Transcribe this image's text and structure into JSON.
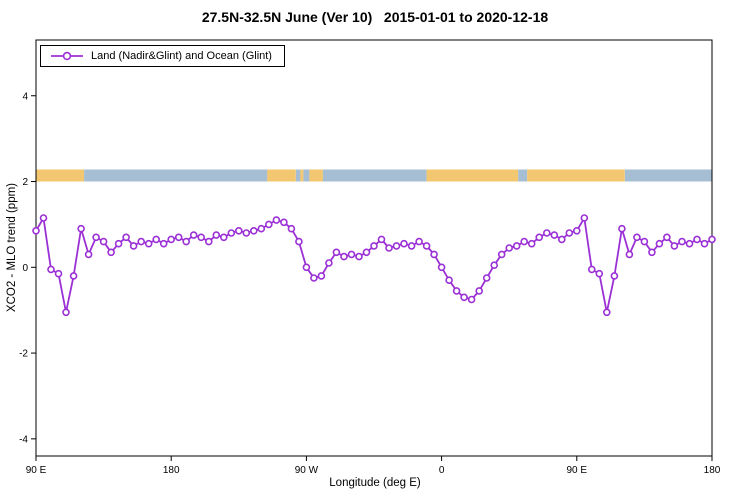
{
  "chart_data": {
    "type": "line",
    "title": "27.5N-32.5N June (Ver 10)   2015-01-01 to 2020-12-18",
    "xlabel": "Longitude (deg E)",
    "ylabel": "XCO2 - MLO trend (ppm)",
    "xlim": [
      90,
      540
    ],
    "ylim": [
      -4.4,
      5.3
    ],
    "grid": false,
    "legend_position": "top-left",
    "x_ticks": [
      {
        "value": 90,
        "label": "90 E"
      },
      {
        "value": 180,
        "label": "180"
      },
      {
        "value": 270,
        "label": "90 W"
      },
      {
        "value": 360,
        "label": "0"
      },
      {
        "value": 450,
        "label": "90 E"
      },
      {
        "value": 540,
        "label": "180"
      }
    ],
    "y_ticks": [
      {
        "value": -4,
        "label": "-4"
      },
      {
        "value": -2,
        "label": "-2"
      },
      {
        "value": 0,
        "label": "0"
      },
      {
        "value": 2,
        "label": "2"
      },
      {
        "value": 4,
        "label": "4"
      }
    ],
    "series": [
      {
        "name": "Land (Nadir&Glint) and Ocean (Glint)",
        "color": "#9b30d5",
        "marker": "open-circle",
        "x": [
          90,
          95,
          100,
          105,
          110,
          115,
          120,
          125,
          130,
          135,
          140,
          145,
          150,
          155,
          160,
          165,
          170,
          175,
          180,
          185,
          190,
          195,
          200,
          205,
          210,
          215,
          220,
          225,
          230,
          235,
          240,
          245,
          250,
          255,
          260,
          265,
          270,
          275,
          280,
          285,
          290,
          295,
          300,
          305,
          310,
          315,
          320,
          325,
          330,
          335,
          340,
          345,
          350,
          355,
          360,
          365,
          370,
          375,
          380,
          385,
          390,
          395,
          400,
          405,
          410,
          415,
          420,
          425,
          430,
          435,
          440,
          445,
          450,
          455,
          460,
          465,
          470,
          475,
          480,
          485,
          490,
          495,
          500,
          505,
          510,
          515,
          520,
          525,
          530,
          535,
          540
        ],
        "y": [
          0.85,
          1.15,
          -0.05,
          -0.15,
          -1.05,
          -0.2,
          0.9,
          0.3,
          0.7,
          0.6,
          0.35,
          0.55,
          0.7,
          0.5,
          0.6,
          0.55,
          0.65,
          0.55,
          0.65,
          0.7,
          0.6,
          0.75,
          0.7,
          0.6,
          0.75,
          0.7,
          0.8,
          0.85,
          0.8,
          0.85,
          0.9,
          1.0,
          1.1,
          1.05,
          0.9,
          0.6,
          0.0,
          -0.25,
          -0.2,
          0.1,
          0.35,
          0.25,
          0.3,
          0.25,
          0.35,
          0.5,
          0.65,
          0.45,
          0.5,
          0.55,
          0.5,
          0.6,
          0.5,
          0.3,
          0.0,
          -0.3,
          -0.55,
          -0.7,
          -0.75,
          -0.55,
          -0.25,
          0.05,
          0.3,
          0.45,
          0.5,
          0.6,
          0.55,
          0.7,
          0.8,
          0.75,
          0.65,
          0.8,
          0.85,
          1.15,
          -0.05,
          -0.15,
          -1.05,
          -0.2,
          0.9,
          0.3,
          0.7,
          0.6,
          0.35,
          0.55,
          0.7,
          0.5,
          0.6,
          0.55,
          0.65,
          0.55,
          0.65
        ]
      }
    ],
    "surface_band": {
      "description": "land-ocean surface type strip",
      "y_range": [
        2.0,
        2.28
      ],
      "colors": {
        "land": "#f2c76f",
        "ocean": "#a6bed3"
      },
      "segments": [
        {
          "from": 90,
          "to": 122,
          "surface": "land"
        },
        {
          "from": 122,
          "to": 244,
          "surface": "ocean"
        },
        {
          "from": 244,
          "to": 263,
          "surface": "land"
        },
        {
          "from": 263,
          "to": 266,
          "surface": "ocean"
        },
        {
          "from": 266,
          "to": 268,
          "surface": "land"
        },
        {
          "from": 268,
          "to": 272,
          "surface": "ocean"
        },
        {
          "from": 272,
          "to": 281,
          "surface": "land"
        },
        {
          "from": 281,
          "to": 350,
          "surface": "ocean"
        },
        {
          "from": 350,
          "to": 411,
          "surface": "land"
        },
        {
          "from": 411,
          "to": 417,
          "surface": "ocean"
        },
        {
          "from": 417,
          "to": 482,
          "surface": "land"
        },
        {
          "from": 482,
          "to": 540,
          "surface": "ocean"
        }
      ]
    }
  }
}
